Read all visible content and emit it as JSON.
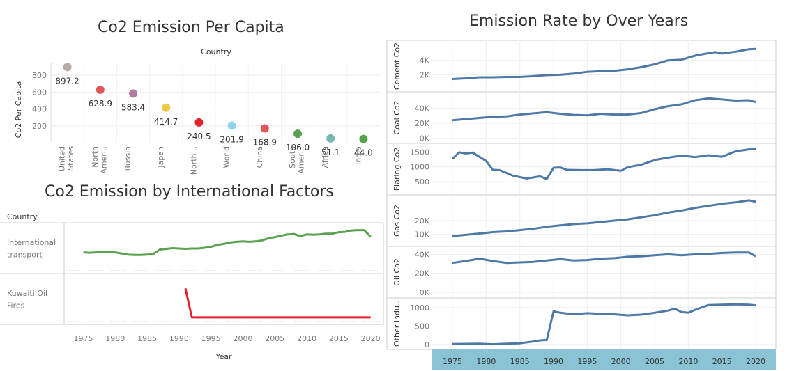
{
  "titles": {
    "per_capita": "Co2 Emission Per Capita",
    "international": "Co2 Emission by International Factors",
    "rate": "Emission Rate by Over Years"
  },
  "colors": {
    "line_blue": "#4e79a7",
    "intl_green": "#59a14f",
    "kuwait_red": "#e15759",
    "band": "#8ac3d3"
  },
  "chart_data": [
    {
      "type": "scatter",
      "title": "Co2 Emission Per Capita",
      "column_header": "Country",
      "ylabel": "Co2 Per Capita",
      "ylim": [
        0,
        950
      ],
      "yticks": [
        200,
        400,
        600,
        800
      ],
      "points": [
        {
          "label": "United States",
          "tick": [
            "United",
            "States"
          ],
          "value": 897.2,
          "value_label": "897.2",
          "color": "#b9aca6"
        },
        {
          "label": "North America",
          "tick": [
            "North",
            "Ameri.."
          ],
          "value": 628.9,
          "value_label": "628.9",
          "color": "#e15759"
        },
        {
          "label": "Russia",
          "tick": [
            "Russia"
          ],
          "value": 583.4,
          "value_label": "583.4",
          "color": "#b07aa1"
        },
        {
          "label": "Japan",
          "tick": [
            "Japan"
          ],
          "value": 414.7,
          "value_label": "414.7",
          "color": "#edc948"
        },
        {
          "label": "North ..",
          "tick": [
            "North .."
          ],
          "value": 240.5,
          "value_label": "240.5",
          "color": "#e0242e"
        },
        {
          "label": "World",
          "tick": [
            "World"
          ],
          "value": 201.9,
          "value_label": "201.9",
          "color": "#8fd3e8"
        },
        {
          "label": "China",
          "tick": [
            "China"
          ],
          "value": 168.9,
          "value_label": "168.9",
          "color": "#e15759"
        },
        {
          "label": "South America",
          "tick": [
            "South",
            "Ameri.."
          ],
          "value": 106.0,
          "value_label": "106.0",
          "color": "#59a14f"
        },
        {
          "label": "Africa",
          "tick": [
            "Africa"
          ],
          "value": 51.1,
          "value_label": "51.1",
          "color": "#76b7b2"
        },
        {
          "label": "India",
          "tick": [
            "India"
          ],
          "value": 44.0,
          "value_label": "44.0",
          "color": "#59a14f"
        }
      ]
    },
    {
      "type": "line",
      "title": "Co2 Emission by International Factors",
      "row_header": "Country",
      "xlabel": "Year",
      "xlim": [
        1972,
        2022
      ],
      "xticks": [
        1975,
        1980,
        1985,
        1990,
        1995,
        2000,
        2005,
        2010,
        2015,
        2020
      ],
      "series": [
        {
          "name": "International transport",
          "label_lines": [
            "International",
            "transport"
          ],
          "color": "#59a14f",
          "ylim": [
            0,
            1.2
          ],
          "x": [
            1975,
            1976,
            1977,
            1978,
            1979,
            1980,
            1981,
            1982,
            1983,
            1984,
            1985,
            1986,
            1987,
            1988,
            1989,
            1990,
            1991,
            1992,
            1993,
            1994,
            1995,
            1996,
            1997,
            1998,
            1999,
            2000,
            2001,
            2002,
            2003,
            2004,
            2005,
            2006,
            2007,
            2008,
            2009,
            2010,
            2011,
            2012,
            2013,
            2014,
            2015,
            2016,
            2017,
            2018,
            2019,
            2020
          ],
          "y": [
            0.48,
            0.47,
            0.48,
            0.49,
            0.49,
            0.48,
            0.45,
            0.42,
            0.41,
            0.41,
            0.42,
            0.44,
            0.56,
            0.58,
            0.6,
            0.59,
            0.58,
            0.59,
            0.59,
            0.61,
            0.64,
            0.69,
            0.72,
            0.76,
            0.78,
            0.79,
            0.78,
            0.79,
            0.82,
            0.88,
            0.91,
            0.95,
            0.99,
            1.0,
            0.94,
            0.99,
            0.98,
            0.99,
            1.01,
            1.01,
            1.05,
            1.06,
            1.1,
            1.11,
            1.11,
            0.92
          ]
        },
        {
          "name": "Kuwaiti Oil Fires",
          "label_lines": [
            "Kuwaiti Oil",
            "Fires"
          ],
          "color": "#e0242e",
          "ylim": [
            0,
            1.2
          ],
          "x": [
            1991,
            1992,
            1993,
            1994,
            1995,
            2000,
            2005,
            2010,
            2015,
            2020
          ],
          "y": [
            0.9,
            0.08,
            0.08,
            0.08,
            0.08,
            0.08,
            0.08,
            0.08,
            0.08,
            0.08
          ]
        }
      ]
    },
    {
      "type": "line",
      "title": "Emission Rate by Over Years",
      "xlim": [
        1972,
        2023
      ],
      "xticks": [
        1975,
        1980,
        1985,
        1990,
        1995,
        2000,
        2005,
        2010,
        2015,
        2020
      ],
      "panels": [
        {
          "name": "Cement Co2",
          "label": "Cement Co2",
          "ylim": [
            0,
            6200
          ],
          "ticks": [
            {
              "v": 2000,
              "t": "2K"
            },
            {
              "v": 4000,
              "t": "4K"
            }
          ],
          "x": [
            1975,
            1977,
            1979,
            1981,
            1983,
            1985,
            1987,
            1989,
            1991,
            1993,
            1995,
            1997,
            1999,
            2001,
            2003,
            2005,
            2007,
            2009,
            2011,
            2013,
            2014,
            2015,
            2017,
            2019,
            2020
          ],
          "y": [
            1400,
            1500,
            1650,
            1650,
            1700,
            1700,
            1800,
            1950,
            2000,
            2150,
            2400,
            2500,
            2550,
            2750,
            3050,
            3450,
            4000,
            4100,
            4650,
            5000,
            5150,
            4950,
            5200,
            5550,
            5600
          ]
        },
        {
          "name": "Coal Co2",
          "label": "Coal Co2",
          "ylim": [
            -3000,
            56000
          ],
          "ticks": [
            {
              "v": 0,
              "t": "0K"
            },
            {
              "v": 20000,
              "t": "20K"
            },
            {
              "v": 40000,
              "t": "40K"
            }
          ],
          "x": [
            1975,
            1977,
            1979,
            1981,
            1983,
            1985,
            1987,
            1989,
            1991,
            1993,
            1995,
            1997,
            1999,
            2001,
            2003,
            2005,
            2007,
            2009,
            2011,
            2013,
            2015,
            2017,
            2019,
            2020
          ],
          "y": [
            24000,
            25500,
            27000,
            28500,
            29000,
            31500,
            33000,
            34500,
            32500,
            31000,
            30500,
            32500,
            31500,
            31500,
            33500,
            38500,
            42500,
            45000,
            50500,
            53000,
            51500,
            50000,
            50500,
            48000
          ]
        },
        {
          "name": "Flaring Co2",
          "label": "Flaring Co2",
          "ylim": [
            150,
            1650
          ],
          "ticks": [
            {
              "v": 500,
              "t": "500"
            },
            {
              "v": 1000,
              "t": "1000"
            },
            {
              "v": 1500,
              "t": "1500"
            }
          ],
          "x": [
            1975,
            1976,
            1977,
            1978,
            1980,
            1981,
            1982,
            1984,
            1986,
            1988,
            1989,
            1990,
            1991,
            1992,
            1994,
            1996,
            1998,
            2000,
            2001,
            2003,
            2005,
            2007,
            2009,
            2011,
            2013,
            2015,
            2017,
            2019,
            2020
          ],
          "y": [
            1270,
            1490,
            1450,
            1480,
            1200,
            900,
            890,
            700,
            610,
            680,
            590,
            970,
            980,
            900,
            890,
            890,
            920,
            870,
            990,
            1070,
            1230,
            1310,
            1380,
            1330,
            1390,
            1340,
            1520,
            1590,
            1600
          ]
        },
        {
          "name": "Gas Co2",
          "label": "Gas Co2",
          "ylim": [
            3000,
            36000
          ],
          "ticks": [
            {
              "v": 10000,
              "t": "10K"
            },
            {
              "v": 20000,
              "t": "20K"
            }
          ],
          "x": [
            1975,
            1977,
            1979,
            1981,
            1983,
            1985,
            1987,
            1989,
            1991,
            1993,
            1995,
            1997,
            1999,
            2001,
            2003,
            2005,
            2007,
            2009,
            2011,
            2013,
            2015,
            2017,
            2019,
            2020
          ],
          "y": [
            8500,
            9500,
            10500,
            11500,
            12000,
            13000,
            14000,
            15500,
            16500,
            17500,
            18000,
            19000,
            20000,
            21000,
            22500,
            24000,
            26000,
            27500,
            29500,
            31000,
            32500,
            33500,
            35000,
            34000
          ]
        },
        {
          "name": "Oil Co2",
          "label": "Oil Co2",
          "ylim": [
            -3000,
            44000
          ],
          "ticks": [
            {
              "v": 0,
              "t": "0K"
            },
            {
              "v": 20000,
              "t": "20K"
            },
            {
              "v": 40000,
              "t": "40K"
            }
          ],
          "x": [
            1975,
            1977,
            1979,
            1981,
            1983,
            1985,
            1987,
            1989,
            1991,
            1993,
            1995,
            1997,
            1999,
            2001,
            2003,
            2005,
            2007,
            2009,
            2011,
            2013,
            2015,
            2017,
            2019,
            2020
          ],
          "y": [
            31000,
            33000,
            35500,
            33000,
            31000,
            31500,
            32000,
            33500,
            35000,
            33500,
            34000,
            35500,
            36000,
            37500,
            38000,
            39000,
            40000,
            39000,
            40000,
            40500,
            41500,
            42000,
            42000,
            38000
          ]
        },
        {
          "name": "Other Industry Co2",
          "label": "Other Indu..",
          "ylim": [
            -60,
            1150
          ],
          "ticks": [
            {
              "v": 0,
              "t": "0"
            },
            {
              "v": 500,
              "t": "500"
            },
            {
              "v": 1000,
              "t": "1000"
            }
          ],
          "x": [
            1975,
            1977,
            1979,
            1981,
            1983,
            1985,
            1987,
            1988,
            1989,
            1990,
            1991,
            1993,
            1995,
            1997,
            1999,
            2001,
            2003,
            2005,
            2007,
            2008,
            2009,
            2010,
            2011,
            2013,
            2015,
            2017,
            2019,
            2020
          ],
          "y": [
            10,
            15,
            20,
            5,
            20,
            30,
            80,
            110,
            120,
            900,
            860,
            820,
            850,
            830,
            820,
            790,
            810,
            860,
            920,
            970,
            880,
            860,
            940,
            1070,
            1080,
            1090,
            1080,
            1060
          ]
        }
      ]
    }
  ]
}
